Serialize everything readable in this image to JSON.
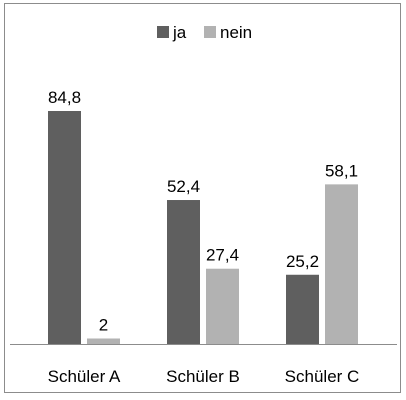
{
  "chart_data": {
    "type": "bar",
    "categories": [
      "Schüler A",
      "Schüler B",
      "Schüler C"
    ],
    "series": [
      {
        "name": "ja",
        "values": [
          84.8,
          52.4,
          25.2
        ],
        "labels": [
          "84,8",
          "52,4",
          "25,2"
        ],
        "color": "#5f5f5f"
      },
      {
        "name": "nein",
        "values": [
          2,
          27.4,
          58.1
        ],
        "labels": [
          "2",
          "27,4",
          "58,1"
        ],
        "color": "#b2b2b2"
      }
    ],
    "title": "",
    "xlabel": "",
    "ylabel": "",
    "ylim": [
      0,
      84.8
    ],
    "grid": false,
    "legend_position": "top"
  }
}
